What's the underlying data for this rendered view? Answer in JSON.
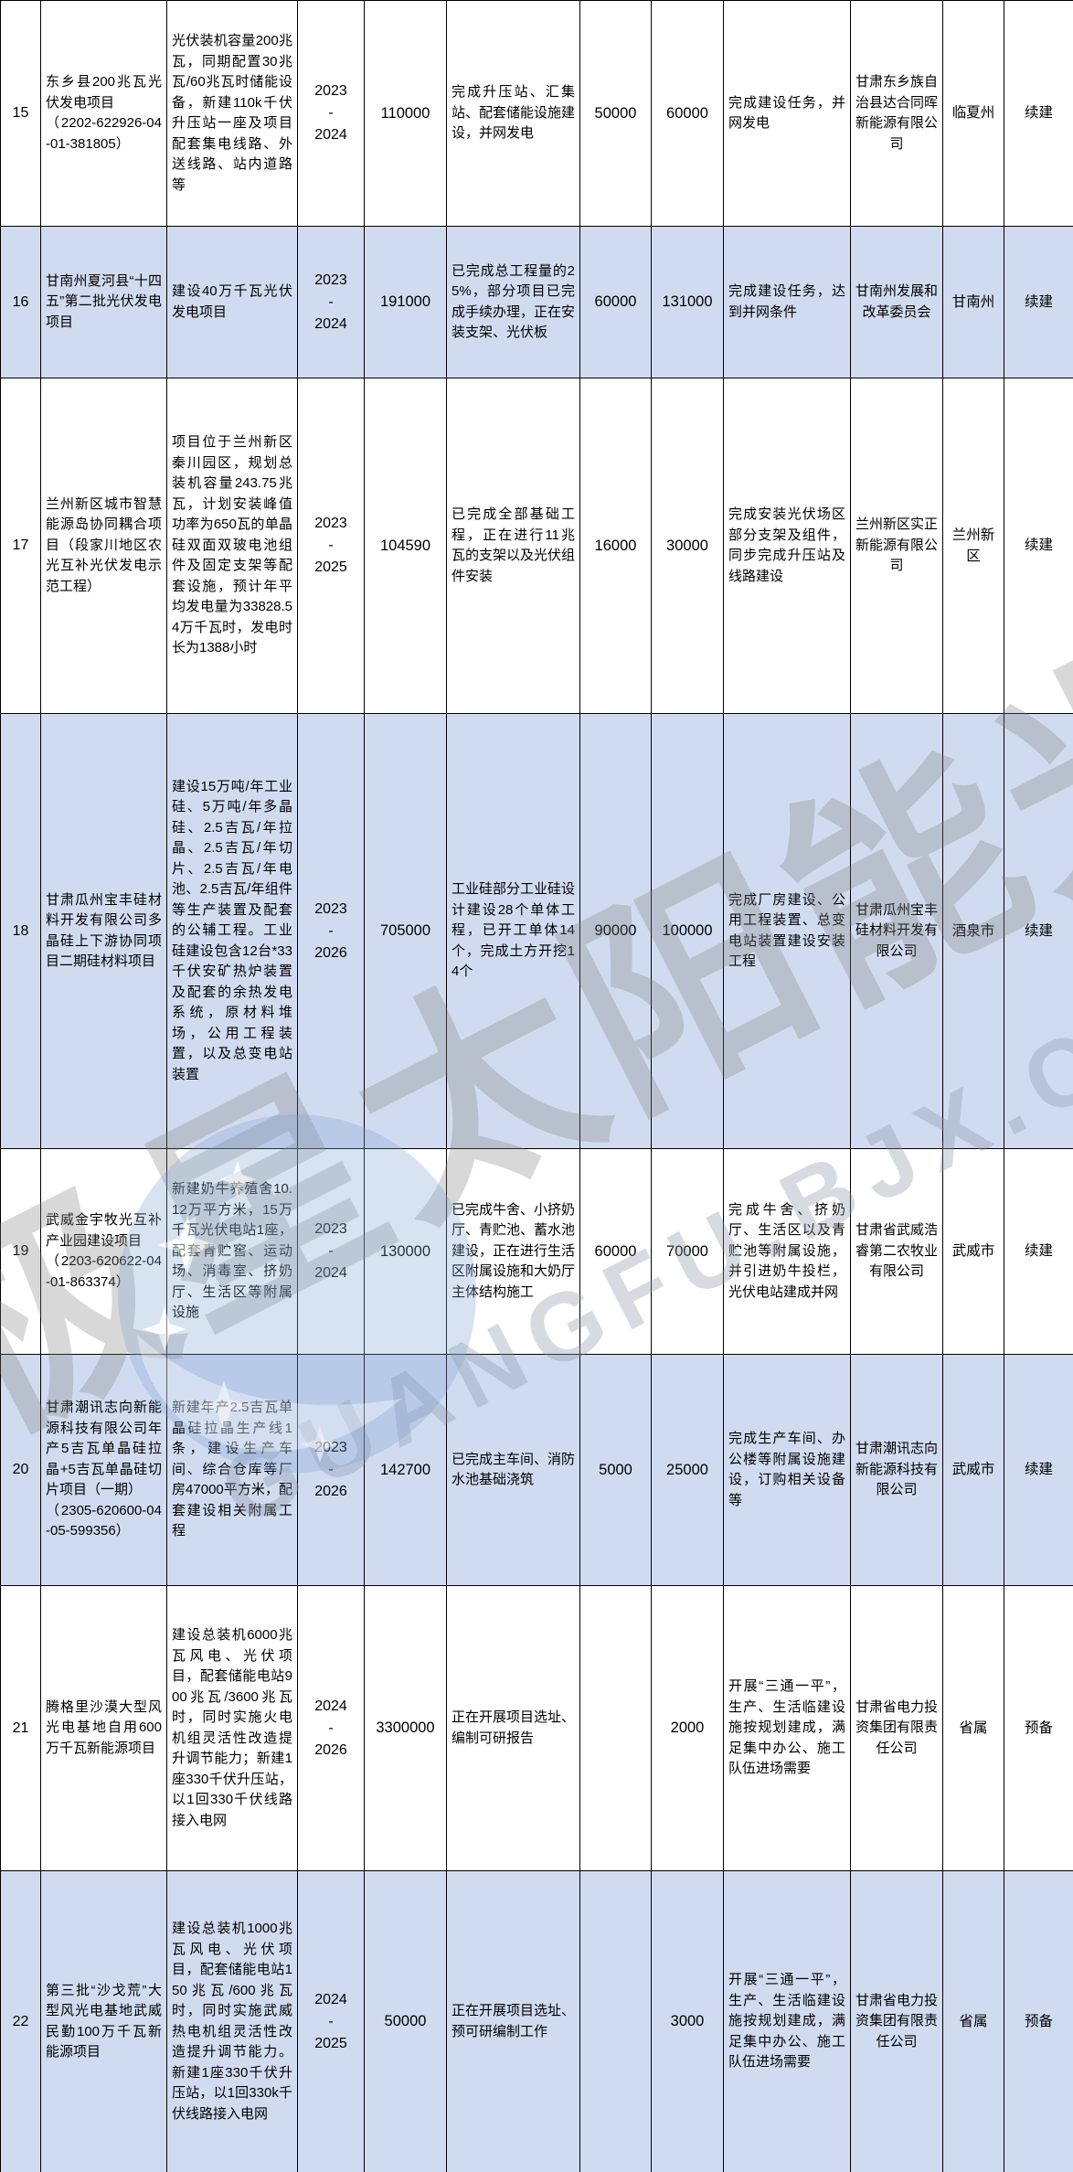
{
  "watermark": {
    "cn_text": "北极星太阳能光伏网",
    "latin_text": "GUANGFU.BJX.COM.CN"
  },
  "table": {
    "rows": [
      {
        "no": "15",
        "name": "东乡县200兆瓦光伏发电项目\n（2202-622926-04-01-381805）",
        "content": "光伏装机容量200兆瓦，同期配置30兆瓦/60兆瓦时储能设备，新建110k千伏升压站一座及项目配套集电线路、外送线路、站内道路等",
        "years": "2023\n-\n2024",
        "investment": "110000",
        "progress": "完成升压站、汇集站、配套储能设施建设，并网发电",
        "fund1": "50000",
        "fund2": "60000",
        "target": "完成建设任务，并网发电",
        "unit": "甘肃东乡族自治县达合同晖新能源有限公司",
        "city": "临夏州",
        "type": "续建",
        "shaded": false
      },
      {
        "no": "16",
        "name": "甘南州夏河县“十四五”第二批光伏发电项目",
        "content": "建设40万千瓦光伏发电项目",
        "years": "2023\n-\n2024",
        "investment": "191000",
        "progress": "已完成总工程量的25%，部分项目已完成手续办理，正在安装支架、光伏板",
        "fund1": "60000",
        "fund2": "131000",
        "target": "完成建设任务，达到并网条件",
        "unit": "甘南州发展和改革委员会",
        "city": "甘南州",
        "type": "续建",
        "shaded": true
      },
      {
        "no": "17",
        "name": "兰州新区城市智慧能源岛协同耦合项目（段家川地区农光互补光伏发电示范工程）",
        "content": "项目位于兰州新区秦川园区，规划总装机容量243.75兆瓦，计划安装峰值功率为650瓦的单晶硅双面双玻电池组件及固定支架等配套设施，预计年平均发电量为33828.54万千瓦时，发电时长为1388小时",
        "years": "2023\n-\n2025",
        "investment": "104590",
        "progress": "已完成全部基础工程，正在进行11兆瓦的支架以及光伏组件安装",
        "fund1": "16000",
        "fund2": "30000",
        "target": "完成安装光伏场区部分支架及组件，同步完成升压站及线路建设",
        "unit": "兰州新区实正新能源有限公司",
        "city": "兰州新区",
        "type": "续建",
        "shaded": false
      },
      {
        "no": "18",
        "name": "甘肃瓜州宝丰硅材料开发有限公司多晶硅上下游协同项目二期硅材料项目",
        "content": "建设15万吨/年工业硅、5万吨/年多晶硅、2.5吉瓦/年拉晶、2.5吉瓦/年切片、2.5吉瓦/年电池、2.5吉瓦/年组件等生产装置及配套的公辅工程。工业硅建设包含12台*33千伏安矿热炉装置及配套的余热发电系统，原材料堆场，公用工程装置，以及总变电站装置",
        "years": "2023\n-\n2026",
        "investment": "705000",
        "progress": "工业硅部分工业硅设计建设28个单体工程，已开工单体14个，完成土方开挖14个",
        "fund1": "90000",
        "fund2": "100000",
        "target": "完成厂房建设、公用工程装置、总变电站装置建设安装工程",
        "unit": "甘肃瓜州宝丰硅材料开发有限公司",
        "city": "酒泉市",
        "type": "续建",
        "shaded": true
      },
      {
        "no": "19",
        "name": "武威金宇牧光互补产业园建设项目\n（2203-620622-04-01-863374）",
        "content": "新建奶牛养殖舍10.12万平方米，15万千瓦光伏电站1座，配套青贮窖、运动场、消毒室、挤奶厅、生活区等附属设施",
        "years": "2023\n-\n2024",
        "investment": "130000",
        "progress": "已完成牛舍、小挤奶厅、青贮池、蓄水池建设，正在进行生活区附属设施和大奶厅主体结构施工",
        "fund1": "60000",
        "fund2": "70000",
        "target": "完成牛舍、挤奶厅、生活区以及青贮池等附属设施，并引进奶牛投栏，光伏电站建成并网",
        "unit": "甘肃省武威浩睿第二农牧业有限公司",
        "city": "武威市",
        "type": "续建",
        "shaded": false
      },
      {
        "no": "20",
        "name": "甘肃潮讯志向新能源科技有限公司年产5吉瓦单晶硅拉晶+5吉瓦单晶硅切片项目（一期）\n（2305-620600-04-05-599356）",
        "content": "新建年产2.5吉瓦单晶硅拉晶生产线1条，建设生产车间、综合仓库等厂房47000平方米，配套建设相关附属工程",
        "years": "2023\n-\n2026",
        "investment": "142700",
        "progress": "已完成主车间、消防水池基础浇筑",
        "fund1": "5000",
        "fund2": "25000",
        "target": "完成生产车间、办公楼等附属设施建设，订购相关设备等",
        "unit": "甘肃潮讯志向新能源科技有限公司",
        "city": "武威市",
        "type": "续建",
        "shaded": true
      },
      {
        "no": "21",
        "name": "腾格里沙漠大型风光电基地自用600万千瓦新能源项目",
        "content": "建设总装机6000兆瓦风电、光伏项目，配套储能电站900兆瓦/3600兆瓦时，同时实施火电机组灵活性改造提升调节能力；新建1座330千伏升压站，以1回330千伏线路接入电网",
        "years": "2024\n-\n2026",
        "investment": "3300000",
        "progress": "正在开展项目选址、编制可研报告",
        "fund1": "",
        "fund2": "2000",
        "target": "开展“三通一平”，生产、生活临建设施按规划建成，满足集中办公、施工队伍进场需要",
        "unit": "甘肃省电力投资集团有限责任公司",
        "city": "省属",
        "type": "预备",
        "shaded": false
      },
      {
        "no": "22",
        "name": "第三批“沙戈荒”大型风光电基地武威民勤100万千瓦新能源项目",
        "content": "建设总装机1000兆瓦风电、光伏项目，配套储能电站150兆瓦/600兆瓦时，同时实施武威热电机组灵活性改造提升调节能力。新建1座330千伏升压站，以1回330k千伏线路接入电网",
        "years": "2024\n-\n2025",
        "investment": "50000",
        "progress": "正在开展项目选址、预可研编制工作",
        "fund1": "",
        "fund2": "3000",
        "target": "开展“三通一平”，生产、生活临建设施按规划建成，满足集中办公、施工队伍进场需要",
        "unit": "甘肃省电力投资集团有限责任公司",
        "city": "省属",
        "type": "预备",
        "shaded": true
      }
    ]
  }
}
